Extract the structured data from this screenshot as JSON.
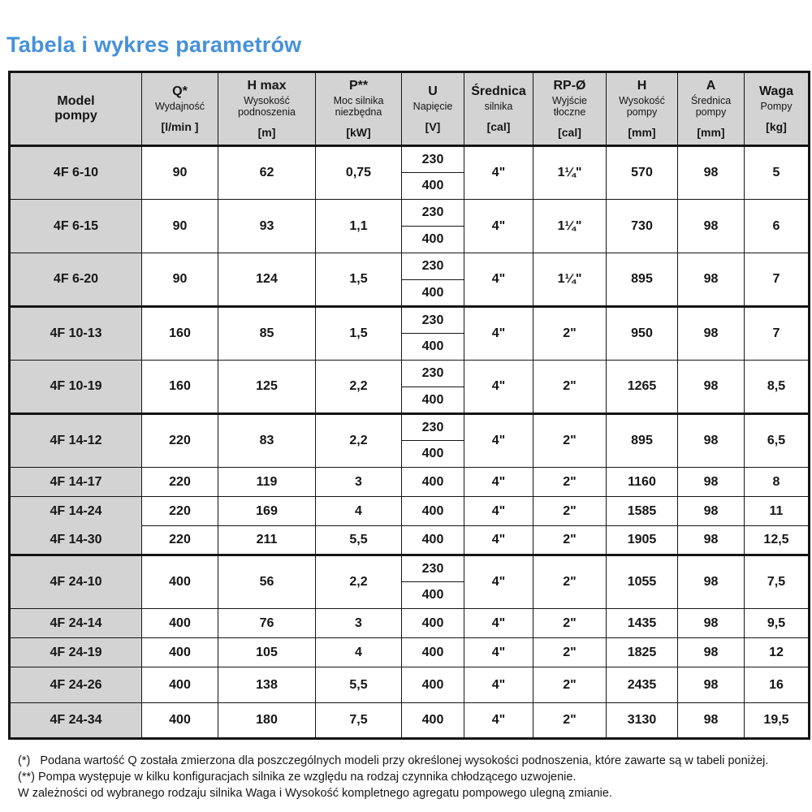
{
  "page_title": "Tabela i wykres parametrów",
  "table": {
    "columns": [
      {
        "key": "model",
        "main": "Model\npompy",
        "sub": "",
        "unit": ""
      },
      {
        "key": "q",
        "main": "Q*",
        "sub": "Wydajność",
        "unit": "[l/min ]"
      },
      {
        "key": "hmax",
        "main": "H max",
        "sub": "Wysokość podnoszenia",
        "unit": "[m]"
      },
      {
        "key": "p",
        "main": "P**",
        "sub": "Moc silnika niezbędna",
        "unit": "[kW]"
      },
      {
        "key": "u",
        "main": "U",
        "sub": "Napięcie",
        "unit": "[V]"
      },
      {
        "key": "dia",
        "main": "Średnica",
        "sub": "silnika",
        "unit": "[cal]"
      },
      {
        "key": "rp",
        "main": "RP-Ø",
        "sub": "Wyjście tłoczne",
        "unit": "[cal]"
      },
      {
        "key": "h",
        "main": "H",
        "sub": "Wysokość pompy",
        "unit": "[mm]"
      },
      {
        "key": "a",
        "main": "A",
        "sub": "Średnica pompy",
        "unit": "[mm]"
      },
      {
        "key": "kg",
        "main": "Waga",
        "sub": "Pompy",
        "unit": "[kg]"
      }
    ],
    "rows": [
      {
        "model": "4F 6-10",
        "q": "90",
        "hmax": "62",
        "p": "0,75",
        "u": [
          "230",
          "400"
        ],
        "dia": "4\"",
        "rp": "1¼\"",
        "h": "570",
        "a": "98",
        "kg": "5",
        "group_end": false,
        "merge_below": false,
        "tall": false
      },
      {
        "model": "4F 6-15",
        "q": "90",
        "hmax": "93",
        "p": "1,1",
        "u": [
          "230",
          "400"
        ],
        "dia": "4\"",
        "rp": "1¼\"",
        "h": "730",
        "a": "98",
        "kg": "6",
        "group_end": false,
        "merge_below": false,
        "tall": false
      },
      {
        "model": "4F 6-20",
        "q": "90",
        "hmax": "124",
        "p": "1,5",
        "u": [
          "230",
          "400"
        ],
        "dia": "4\"",
        "rp": "1¼\"",
        "h": "895",
        "a": "98",
        "kg": "7",
        "group_end": true,
        "merge_below": false,
        "tall": false
      },
      {
        "model": "4F 10-13",
        "q": "160",
        "hmax": "85",
        "p": "1,5",
        "u": [
          "230",
          "400"
        ],
        "dia": "4\"",
        "rp": "2\"",
        "h": "950",
        "a": "98",
        "kg": "7",
        "group_end": false,
        "merge_below": false,
        "tall": false
      },
      {
        "model": "4F 10-19",
        "q": "160",
        "hmax": "125",
        "p": "2,2",
        "u": [
          "230",
          "400"
        ],
        "dia": "4\"",
        "rp": "2\"",
        "h": "1265",
        "a": "98",
        "kg": "8,5",
        "group_end": true,
        "merge_below": false,
        "tall": false
      },
      {
        "model": "4F 14-12",
        "q": "220",
        "hmax": "83",
        "p": "2,2",
        "u": [
          "230",
          "400"
        ],
        "dia": "4\"",
        "rp": "2\"",
        "h": "895",
        "a": "98",
        "kg": "6,5",
        "group_end": false,
        "merge_below": false,
        "tall": false
      },
      {
        "model": "4F 14-17",
        "q": "220",
        "hmax": "119",
        "p": "3",
        "u": [
          "400"
        ],
        "dia": "4\"",
        "rp": "2\"",
        "h": "1160",
        "a": "98",
        "kg": "8",
        "group_end": false,
        "merge_below": false,
        "tall": false
      },
      {
        "model": "4F 14-24",
        "q": "220",
        "hmax": "169",
        "p": "4",
        "u": [
          "400"
        ],
        "dia": "4\"",
        "rp": "2\"",
        "h": "1585",
        "a": "98",
        "kg": "11",
        "group_end": false,
        "merge_below": true,
        "tall": false
      },
      {
        "model": "4F 14-30",
        "q": "220",
        "hmax": "211",
        "p": "5,5",
        "u": [
          "400"
        ],
        "dia": "4\"",
        "rp": "2\"",
        "h": "1905",
        "a": "98",
        "kg": "12,5",
        "group_end": true,
        "merge_below": false,
        "tall": false
      },
      {
        "model": "4F 24-10",
        "q": "400",
        "hmax": "56",
        "p": "2,2",
        "u": [
          "230",
          "400"
        ],
        "dia": "4\"",
        "rp": "2\"",
        "h": "1055",
        "a": "98",
        "kg": "7,5",
        "group_end": false,
        "merge_below": false,
        "tall": false
      },
      {
        "model": "4F 24-14",
        "q": "400",
        "hmax": "76",
        "p": "3",
        "u": [
          "400"
        ],
        "dia": "4\"",
        "rp": "2\"",
        "h": "1435",
        "a": "98",
        "kg": "9,5",
        "group_end": false,
        "merge_below": false,
        "tall": false
      },
      {
        "model": "4F 24-19",
        "q": "400",
        "hmax": "105",
        "p": "4",
        "u": [
          "400"
        ],
        "dia": "4\"",
        "rp": "2\"",
        "h": "1825",
        "a": "98",
        "kg": "12",
        "group_end": false,
        "merge_below": false,
        "tall": false
      },
      {
        "model": "4F 24-26",
        "q": "400",
        "hmax": "138",
        "p": "5,5",
        "u": [
          "400"
        ],
        "dia": "4\"",
        "rp": "2\"",
        "h": "2435",
        "a": "98",
        "kg": "16",
        "group_end": false,
        "merge_below": false,
        "tall": true
      },
      {
        "model": "4F 24-34",
        "q": "400",
        "hmax": "180",
        "p": "7,5",
        "u": [
          "400"
        ],
        "dia": "4\"",
        "rp": "2\"",
        "h": "3130",
        "a": "98",
        "kg": "19,5",
        "group_end": false,
        "merge_below": false,
        "tall": true
      }
    ]
  },
  "footnotes": [
    "(*)   Podana wartość Q została zmierzona dla poszczególnych modeli przy określonej wysokości podnoszenia, które zawarte są w tabeli poniżej.",
    "(**) Pompa występuje w kilku konfiguracjach silnika ze względu na rodzaj czynnika chłodzącego uzwojenie.",
    "W zależności od wybranego rodzaju silnika Waga i Wysokość kompletnego agregatu pompowego ulegną zmianie."
  ],
  "colors": {
    "title_blue": "#4691db",
    "header_gray": "#d3d3d3",
    "border_black": "#151515"
  }
}
